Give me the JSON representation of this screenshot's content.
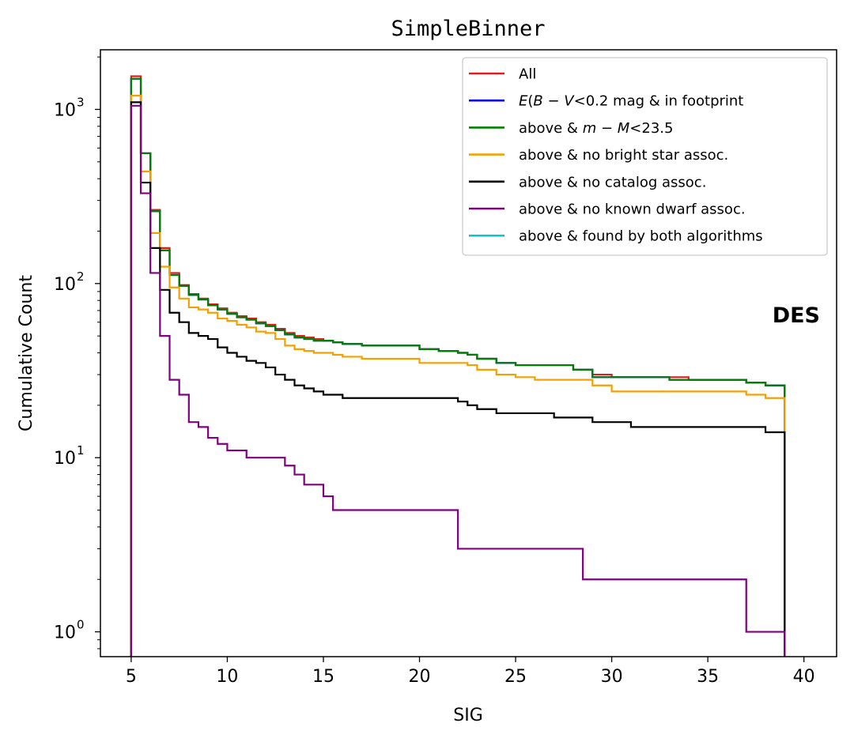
{
  "chart_data": {
    "type": "line",
    "step": "post",
    "title": "SimpleBinner",
    "xlabel": "SIG",
    "ylabel": "Cumulative Count",
    "xlim": [
      3.4,
      41.7
    ],
    "ylim": [
      0.72,
      2200
    ],
    "yscale": "log",
    "grid": false,
    "legend_position": "top-right",
    "annotation": "DES",
    "x_ticks": [
      {
        "value": 5,
        "label": "5"
      },
      {
        "value": 10,
        "label": "10"
      },
      {
        "value": 15,
        "label": "15"
      },
      {
        "value": 20,
        "label": "20"
      },
      {
        "value": 25,
        "label": "25"
      },
      {
        "value": 30,
        "label": "30"
      },
      {
        "value": 35,
        "label": "35"
      },
      {
        "value": 40,
        "label": "40"
      }
    ],
    "y_ticks": [
      {
        "value": 1,
        "base": "10",
        "exp": "0"
      },
      {
        "value": 10,
        "base": "10",
        "exp": "1"
      },
      {
        "value": 100,
        "base": "10",
        "exp": "2"
      },
      {
        "value": 1000,
        "base": "10",
        "exp": "3"
      }
    ],
    "series": [
      {
        "name": "All",
        "color": "#e41a1c",
        "x": [
          5,
          5.5,
          6,
          6.5,
          7,
          7.5,
          8,
          8.5,
          9,
          9.5,
          10,
          10.5,
          11,
          11.5,
          12,
          12.5,
          13,
          13.5,
          14,
          14.5,
          15,
          15.5,
          16,
          17,
          18,
          19,
          20,
          21,
          22,
          22.5,
          23,
          24,
          25,
          26,
          27,
          28,
          29,
          30,
          31,
          32,
          33,
          34,
          35,
          36,
          37,
          38
        ],
        "y": [
          1550,
          560,
          265,
          160,
          115,
          98,
          87,
          82,
          76,
          72,
          68,
          65,
          63,
          60,
          58,
          55,
          52,
          50,
          49,
          48,
          47,
          46,
          45,
          44,
          44,
          44,
          42,
          41,
          40,
          39,
          37,
          35,
          34,
          34,
          34,
          32,
          30,
          29,
          29,
          29,
          29,
          28,
          28,
          28,
          27,
          26
        ]
      },
      {
        "name": "E(B−V)<0.2 mag & in footprint",
        "color": "#0000ee",
        "x": [
          5,
          5.5,
          6,
          6.5,
          7,
          7.5,
          8,
          8.5,
          9,
          9.5,
          10,
          10.5,
          11,
          11.5,
          12,
          12.5,
          13,
          13.5,
          14,
          14.5,
          15,
          15.5,
          16,
          17,
          18,
          19,
          20,
          21,
          22,
          22.5,
          23,
          24,
          25,
          26,
          27,
          28,
          29,
          30,
          31,
          32,
          33,
          34,
          35,
          36,
          37,
          38
        ],
        "y": [
          1500,
          560,
          260,
          155,
          112,
          97,
          86,
          81,
          75,
          71,
          67,
          64,
          62,
          59,
          57,
          54,
          51,
          49,
          48,
          47,
          47,
          46,
          45,
          44,
          44,
          44,
          42,
          41,
          40,
          39,
          37,
          35,
          34,
          34,
          34,
          32,
          29,
          29,
          29,
          29,
          28,
          28,
          28,
          28,
          27,
          26
        ]
      },
      {
        "name": "above & m−M<23.5",
        "color": "#008000",
        "x": [
          5,
          5.5,
          6,
          6.5,
          7,
          7.5,
          8,
          8.5,
          9,
          9.5,
          10,
          10.5,
          11,
          11.5,
          12,
          12.5,
          13,
          13.5,
          14,
          14.5,
          15,
          15.5,
          16,
          17,
          18,
          19,
          20,
          21,
          22,
          22.5,
          23,
          24,
          25,
          26,
          27,
          28,
          29,
          30,
          31,
          32,
          33,
          34,
          35,
          36,
          37,
          38
        ],
        "y": [
          1500,
          560,
          260,
          155,
          112,
          97,
          86,
          81,
          75,
          71,
          67,
          64,
          62,
          59,
          57,
          54,
          51,
          49,
          48,
          47,
          47,
          46,
          45,
          44,
          44,
          44,
          42,
          41,
          40,
          39,
          37,
          35,
          34,
          34,
          34,
          32,
          29,
          29,
          29,
          29,
          28,
          28,
          28,
          28,
          27,
          26
        ]
      },
      {
        "name": "above & no bright star assoc.",
        "color": "#f5a000",
        "x": [
          5,
          5.5,
          6,
          6.5,
          7,
          7.5,
          8,
          8.5,
          9,
          9.5,
          10,
          10.5,
          11,
          11.5,
          12,
          12.5,
          13,
          13.5,
          14,
          14.5,
          15,
          15.5,
          16,
          17,
          18,
          19,
          20,
          21,
          22,
          22.5,
          23,
          24,
          25,
          26,
          27,
          28,
          29,
          30,
          31,
          32,
          33,
          34,
          35,
          36,
          37,
          38
        ],
        "y": [
          1200,
          440,
          195,
          125,
          95,
          82,
          73,
          71,
          68,
          63,
          61,
          58,
          56,
          53,
          52,
          48,
          44,
          42,
          41,
          40,
          40,
          39,
          38,
          37,
          37,
          37,
          35,
          35,
          35,
          34,
          32,
          30,
          29,
          28,
          28,
          28,
          26,
          24,
          24,
          24,
          24,
          24,
          24,
          24,
          23,
          22
        ]
      },
      {
        "name": "above & no catalog assoc.",
        "color": "#000000",
        "x": [
          5,
          5.5,
          6,
          6.5,
          7,
          7.5,
          8,
          8.5,
          9,
          9.5,
          10,
          10.5,
          11,
          11.5,
          12,
          12.5,
          13,
          13.5,
          14,
          14.5,
          15,
          15.5,
          16,
          17,
          18,
          19,
          20,
          21,
          22,
          22.5,
          23,
          24,
          25,
          26,
          27,
          28,
          29,
          30,
          31,
          32,
          33,
          34,
          35,
          36,
          37,
          38
        ],
        "y": [
          1100,
          380,
          160,
          92,
          68,
          60,
          52,
          50,
          48,
          43,
          40,
          38,
          36,
          35,
          33,
          30,
          28,
          26,
          25,
          24,
          23,
          23,
          22,
          22,
          22,
          22,
          22,
          22,
          21,
          20,
          19,
          18,
          18,
          18,
          17,
          17,
          16,
          16,
          15,
          15,
          15,
          15,
          15,
          15,
          15,
          14
        ]
      },
      {
        "name": "above & no known dwarf assoc.",
        "color": "#800080",
        "x": [
          5,
          5.5,
          6,
          6.5,
          7,
          7.5,
          8,
          8.5,
          9,
          9.5,
          10,
          11,
          12,
          13,
          13.5,
          14,
          15,
          15.5,
          22,
          28.5,
          37,
          38
        ],
        "y": [
          1050,
          330,
          115,
          50,
          28,
          23,
          16,
          15,
          13,
          12,
          11,
          10,
          10,
          9,
          8,
          7,
          6,
          5,
          3,
          2,
          1,
          1
        ]
      },
      {
        "name": "above & found by both algorithms",
        "color": "#17becf",
        "x": [],
        "y": []
      }
    ]
  }
}
